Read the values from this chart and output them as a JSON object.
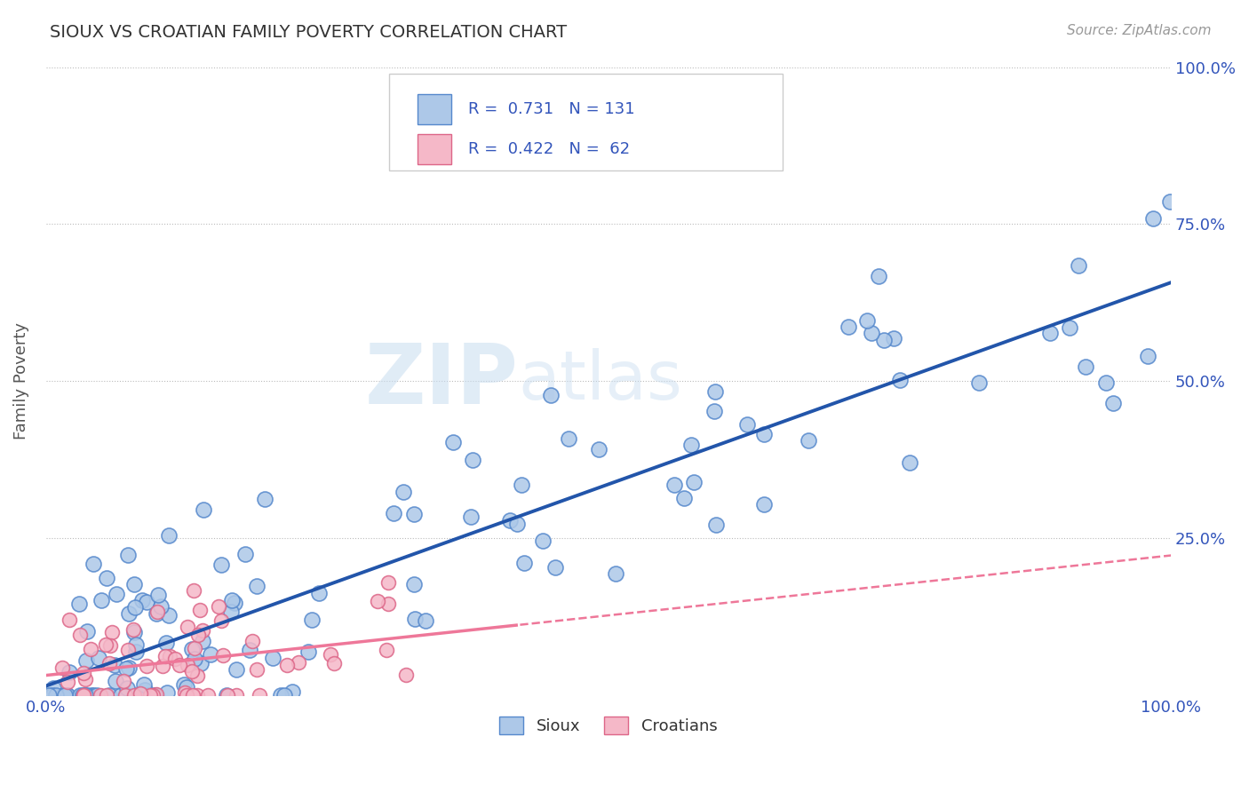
{
  "title": "SIOUX VS CROATIAN FAMILY POVERTY CORRELATION CHART",
  "source_text": "Source: ZipAtlas.com",
  "ylabel": "Family Poverty",
  "xlim": [
    0,
    1
  ],
  "ylim": [
    0,
    1
  ],
  "sioux_color": "#adc8e8",
  "croatian_color": "#f5b8c8",
  "sioux_edge": "#5588cc",
  "croatian_edge": "#dd6688",
  "line_sioux_color": "#2255aa",
  "line_croatian_solid_color": "#ee7799",
  "line_croatian_dash_color": "#ee7799",
  "text_color": "#3355bb",
  "title_color": "#333333",
  "background_color": "#ffffff",
  "grid_color": "#bbbbbb",
  "watermark_color": "#dce8f4",
  "legend_box_color": "#dddddd"
}
